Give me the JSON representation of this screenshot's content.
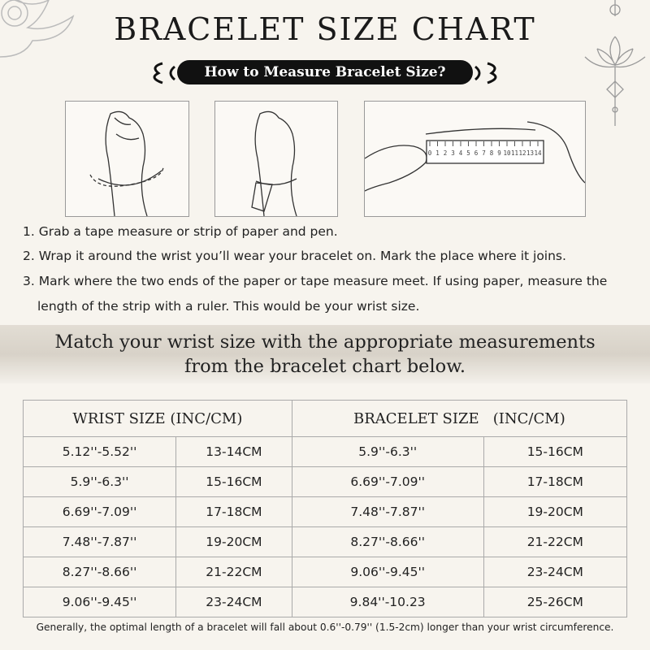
{
  "header": {
    "title": "BRACELET SIZE CHART",
    "subtitle": "How to Measure Bracelet Size?"
  },
  "ruler_labels": [
    "0",
    "1",
    "2",
    "3",
    "4",
    "5",
    "6",
    "7",
    "8",
    "9",
    "10",
    "11",
    "12",
    "13",
    "14"
  ],
  "steps": [
    "1. Grab a tape measure or strip of paper and pen.",
    "2. Wrap it around the wrist you’ll wear your bracelet on. Mark the place where it joins.",
    "3. Mark where the two ends of the paper or tape measure meet. If using paper, measure the length of the strip with a ruler. This would be your wrist size."
  ],
  "banner": [
    "Match your wrist size with the appropriate measurements",
    "from the bracelet chart below."
  ],
  "table": {
    "headers": [
      "WRIST SIZE (INC/CM)",
      "BRACELET SIZE   (INC/CM)"
    ],
    "rows": [
      [
        "5.12''-5.52''",
        "13-14CM",
        "5.9''-6.3''",
        "15-16CM"
      ],
      [
        "5.9''-6.3''",
        "15-16CM",
        "6.69''-7.09''",
        "17-18CM"
      ],
      [
        "6.69''-7.09''",
        "17-18CM",
        "7.48''-7.87''",
        "19-20CM"
      ],
      [
        "7.48''-7.87''",
        "19-20CM",
        "8.27''-8.66''",
        "21-22CM"
      ],
      [
        "8.27''-8.66''",
        "21-22CM",
        "9.06''-9.45''",
        "23-24CM"
      ],
      [
        "9.06''-9.45''",
        "23-24CM",
        "9.84''-10.23",
        "25-26CM"
      ]
    ]
  },
  "footer": "Generally, the optimal length of a bracelet will fall about 0.6''-0.79'' (1.5-2cm) longer than your wrist circumference."
}
